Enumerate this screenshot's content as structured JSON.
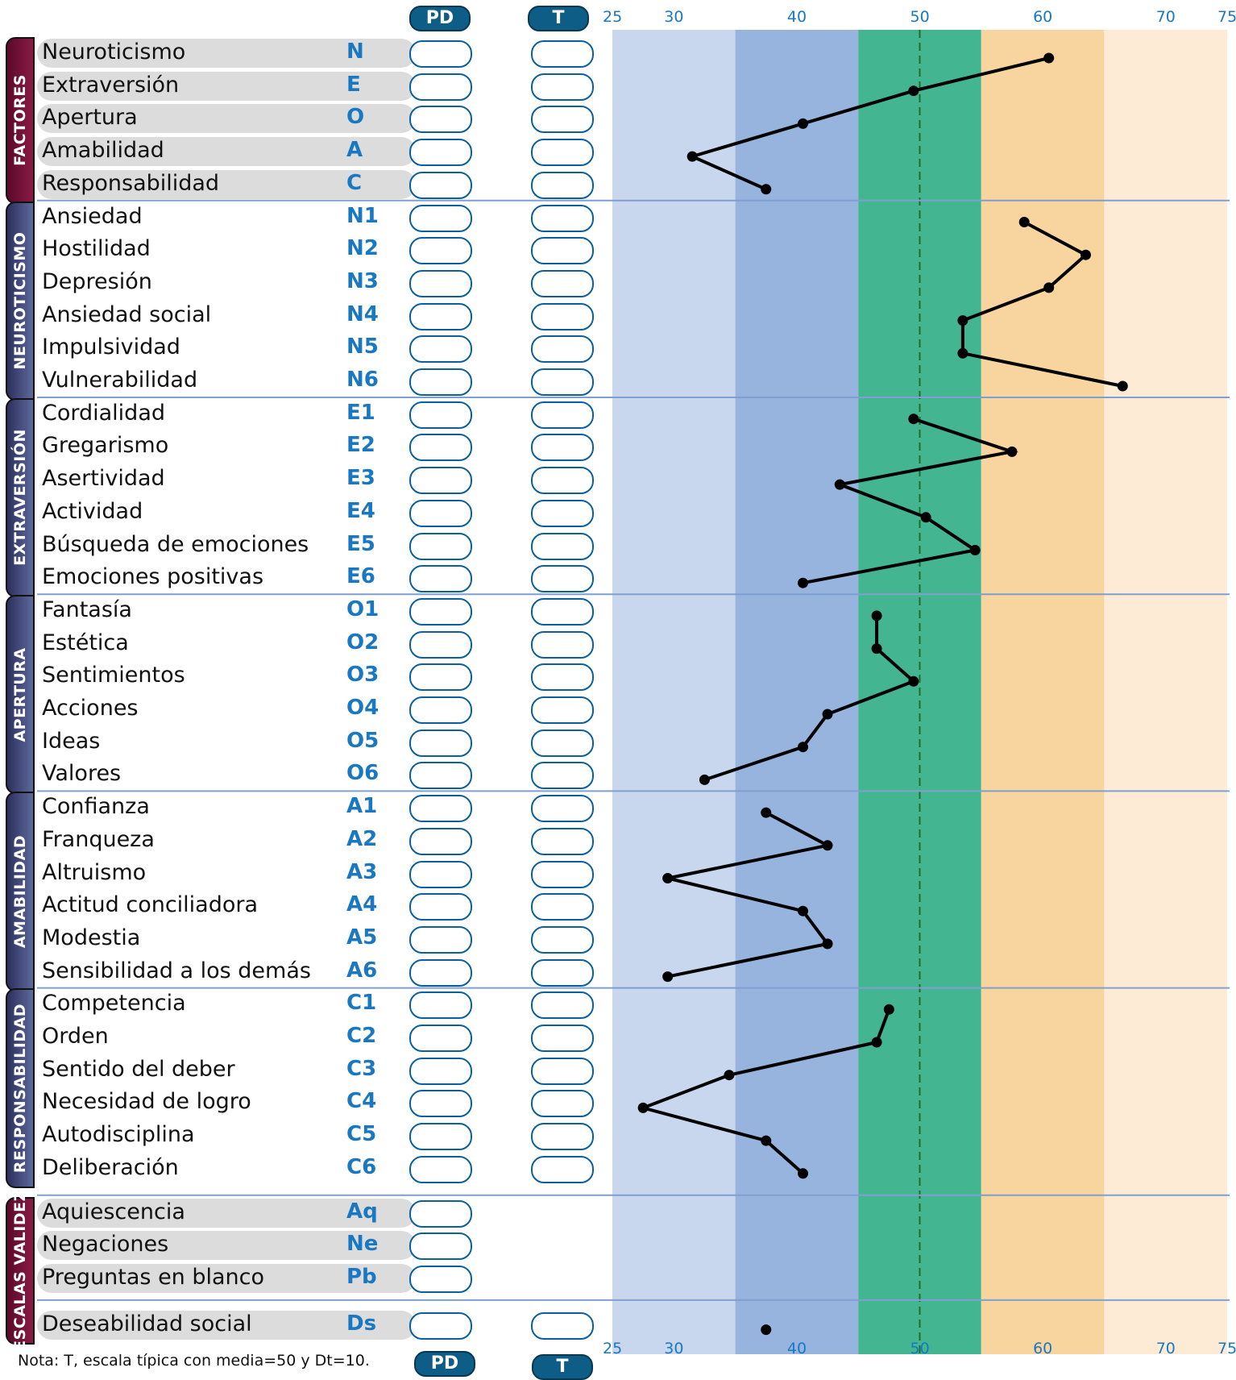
{
  "header": {
    "pd_label": "PD",
    "t_label": "T"
  },
  "footer": {
    "note": "Nota: T, escala típica con media=50 y Dt=10.",
    "pd_label": "PD",
    "t_label": "T"
  },
  "sections": [
    {
      "title": "FACTORES",
      "color": "#5a0a2a",
      "rows": [
        {
          "label": "Neuroticismo",
          "code": "N",
          "t": 60.5
        },
        {
          "label": "Extraversión",
          "code": "E",
          "t": 49.5
        },
        {
          "label": "Apertura",
          "code": "O",
          "t": 40.5
        },
        {
          "label": "Amabilidad",
          "code": "A",
          "t": 31.5
        },
        {
          "label": "Responsabilidad",
          "code": "C",
          "t": 37.5
        }
      ]
    },
    {
      "title": "NEUROTICISMO",
      "color": "#2c2f5e",
      "rows": [
        {
          "label": "Ansiedad",
          "code": "N1",
          "t": 58.5
        },
        {
          "label": "Hostilidad",
          "code": "N2",
          "t": 63.5
        },
        {
          "label": "Depresión",
          "code": "N3",
          "t": 60.5
        },
        {
          "label": "Ansiedad social",
          "code": "N4",
          "t": 53.5
        },
        {
          "label": "Impulsividad",
          "code": "N5",
          "t": 53.5
        },
        {
          "label": "Vulnerabilidad",
          "code": "N6",
          "t": 66.5
        }
      ]
    },
    {
      "title": "EXTRAVERSIÓN",
      "color": "#2c2f5e",
      "rows": [
        {
          "label": "Cordialidad",
          "code": "E1",
          "t": 49.5
        },
        {
          "label": "Gregarismo",
          "code": "E2",
          "t": 57.5
        },
        {
          "label": "Asertividad",
          "code": "E3",
          "t": 43.5
        },
        {
          "label": "Actividad",
          "code": "E4",
          "t": 50.5
        },
        {
          "label": "Búsqueda de emociones",
          "code": "E5",
          "t": 54.5
        },
        {
          "label": "Emociones positivas",
          "code": "E6",
          "t": 40.5
        }
      ]
    },
    {
      "title": "APERTURA",
      "color": "#2c2f5e",
      "rows": [
        {
          "label": "Fantasía",
          "code": "O1",
          "t": 46.5
        },
        {
          "label": "Estética",
          "code": "O2",
          "t": 46.5
        },
        {
          "label": "Sentimientos",
          "code": "O3",
          "t": 49.5
        },
        {
          "label": "Acciones",
          "code": "O4",
          "t": 42.5
        },
        {
          "label": "Ideas",
          "code": "O5",
          "t": 40.5
        },
        {
          "label": "Valores",
          "code": "O6",
          "t": 32.5
        }
      ]
    },
    {
      "title": "AMABILIDAD",
      "color": "#2c2f5e",
      "rows": [
        {
          "label": "Confianza",
          "code": "A1",
          "t": 37.5
        },
        {
          "label": "Franqueza",
          "code": "A2",
          "t": 42.5
        },
        {
          "label": "Altruismo",
          "code": "A3",
          "t": 29.5
        },
        {
          "label": "Actitud conciliadora",
          "code": "A4",
          "t": 40.5
        },
        {
          "label": "Modestia",
          "code": "A5",
          "t": 42.5
        },
        {
          "label": "Sensibilidad a los demás",
          "code": "A6",
          "t": 29.5
        }
      ]
    },
    {
      "title": "RESPONSABILIDAD",
      "color": "#2c2f5e",
      "rows": [
        {
          "label": "Competencia",
          "code": "C1",
          "t": 47.5
        },
        {
          "label": "Orden",
          "code": "C2",
          "t": 46.5
        },
        {
          "label": "Sentido del deber",
          "code": "C3",
          "t": 34.5
        },
        {
          "label": "Necesidad de logro",
          "code": "C4",
          "t": 27.5
        },
        {
          "label": "Autodisciplina",
          "code": "C5",
          "t": 37.5
        },
        {
          "label": "Deliberación",
          "code": "C6",
          "t": 40.5
        }
      ]
    },
    {
      "title": "ESCALAS VALIDEZ",
      "color": "#5a0a2a",
      "rows": [
        {
          "label": "Aquiescencia",
          "code": "Aq"
        },
        {
          "label": "Negaciones",
          "code": "Ne"
        },
        {
          "label": "Preguntas en blanco",
          "code": "Pb"
        },
        {
          "label": "Deseabilidad social",
          "code": "Ds",
          "t": 37.5
        }
      ]
    }
  ],
  "chart_data": {
    "type": "line",
    "x_axis_ticks": [
      25,
      30,
      40,
      50,
      60,
      70,
      75
    ],
    "xlim": [
      25,
      75
    ],
    "reference_line": 50,
    "bands": [
      {
        "from": 25,
        "to": 35,
        "color": "#c8d6ee"
      },
      {
        "from": 35,
        "to": 45,
        "color": "#97b4de"
      },
      {
        "from": 45,
        "to": 55,
        "color": "#43b691"
      },
      {
        "from": 55,
        "to": 65,
        "color": "#f8d49e"
      },
      {
        "from": 65,
        "to": 75,
        "color": "#fdebd6"
      }
    ]
  }
}
